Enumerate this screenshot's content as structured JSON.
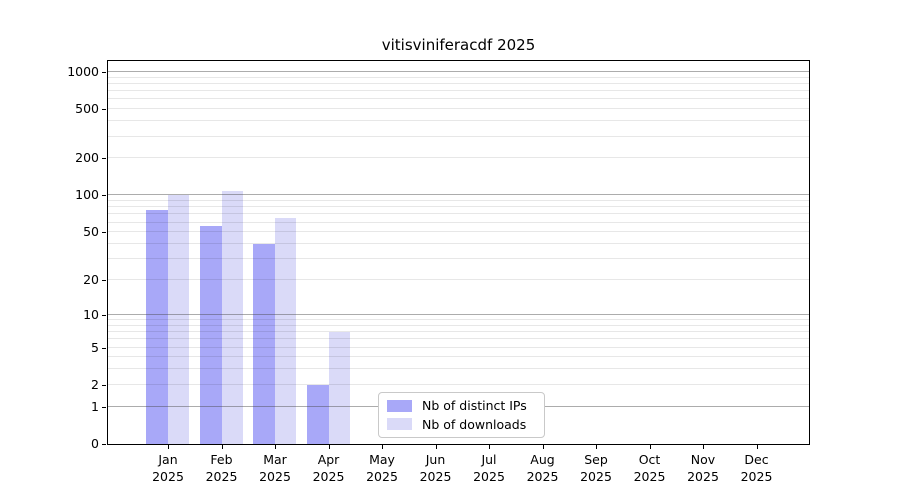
{
  "chart": {
    "title": "vitisviniferacdf 2025",
    "legend": {
      "items": [
        {
          "label": "Nb of distinct IPs",
          "color": "#a8a8f8"
        },
        {
          "label": "Nb of downloads",
          "color": "#dadaf8"
        }
      ]
    },
    "y_axis": {
      "tick_labels": [
        "1000",
        "500",
        "200",
        "100",
        "50",
        "20",
        "10",
        "5",
        "2",
        "1",
        "0"
      ]
    },
    "x_axis": {
      "months": [
        "Jan",
        "Feb",
        "Mar",
        "Apr",
        "May",
        "Jun",
        "Jul",
        "Aug",
        "Sep",
        "Oct",
        "Nov",
        "Dec"
      ],
      "year": "2025"
    }
  },
  "chart_data": {
    "type": "bar",
    "title": "vitisviniferacdf 2025",
    "xlabel": "",
    "ylabel": "",
    "categories": [
      "Jan 2025",
      "Feb 2025",
      "Mar 2025",
      "Apr 2025",
      "May 2025",
      "Jun 2025",
      "Jul 2025",
      "Aug 2025",
      "Sep 2025",
      "Oct 2025",
      "Nov 2025",
      "Dec 2025"
    ],
    "series": [
      {
        "name": "Nb of distinct IPs",
        "color": "#a8a8f8",
        "values": [
          76,
          56,
          40,
          2,
          0,
          0,
          0,
          0,
          0,
          0,
          0,
          0
        ]
      },
      {
        "name": "Nb of downloads",
        "color": "#dadaf8",
        "values": [
          100,
          108,
          65,
          7,
          0,
          0,
          0,
          0,
          0,
          0,
          0,
          0
        ]
      }
    ],
    "y_scale": "log(1+x)",
    "y_ticks": [
      0,
      1,
      2,
      5,
      10,
      20,
      50,
      100,
      200,
      500,
      1000
    ],
    "y_minor_gridlines": [
      3,
      4,
      6,
      7,
      8,
      9,
      30,
      40,
      60,
      70,
      80,
      90,
      300,
      400,
      600,
      700,
      800,
      900
    ],
    "ylim": [
      0,
      1225
    ],
    "grid": true,
    "legend_position": "lower center",
    "grid_major_color": "#ababab",
    "grid_minor_color": "#e8e8e8"
  }
}
